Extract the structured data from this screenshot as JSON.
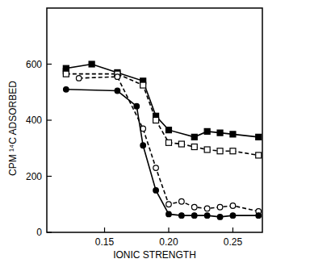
{
  "chart_data": {
    "type": "line",
    "xlabel": "IONIC STRENGTH",
    "ylabel": "CPM ¹⁴C ADSORBED",
    "xlim": [
      0.105,
      0.273
    ],
    "ylim": [
      0,
      800
    ],
    "xticks": [
      {
        "value": 0.15,
        "label": "0.15"
      },
      {
        "value": 0.2,
        "label": "0.20"
      },
      {
        "value": 0.25,
        "label": "0.25"
      }
    ],
    "yticks": [
      0,
      200,
      400,
      600
    ],
    "grid": false,
    "series": [
      {
        "color": "#000000",
        "marker": "square-filled",
        "line_style": "solid",
        "x": [
          0.12,
          0.12,
          0.14,
          0.16,
          0.18,
          0.19,
          0.2,
          0.22,
          0.23,
          0.24,
          0.25,
          0.27
        ],
        "values": [
          575,
          585,
          600,
          570,
          540,
          415,
          365,
          340,
          360,
          355,
          350,
          340
        ]
      },
      {
        "color": "#000000",
        "marker": "square-open",
        "line_style": "dashed",
        "x": [
          0.12,
          0.16,
          0.18,
          0.19,
          0.2,
          0.21,
          0.22,
          0.23,
          0.24,
          0.25,
          0.27
        ],
        "values": [
          565,
          565,
          525,
          400,
          320,
          315,
          305,
          295,
          290,
          290,
          275
        ]
      },
      {
        "color": "#000000",
        "marker": "circle-open",
        "line_style": "dashed",
        "x": [
          0.13,
          0.16,
          0.18,
          0.19,
          0.2,
          0.21,
          0.22,
          0.23,
          0.24,
          0.25,
          0.27
        ],
        "values": [
          550,
          555,
          370,
          230,
          100,
          110,
          90,
          85,
          90,
          95,
          75
        ]
      },
      {
        "color": "#000000",
        "marker": "circle-filled",
        "line_style": "solid",
        "x": [
          0.12,
          0.16,
          0.175,
          0.18,
          0.19,
          0.2,
          0.21,
          0.22,
          0.23,
          0.24,
          0.25,
          0.27
        ],
        "values": [
          510,
          505,
          450,
          310,
          150,
          65,
          60,
          60,
          60,
          55,
          60,
          60
        ]
      }
    ]
  }
}
